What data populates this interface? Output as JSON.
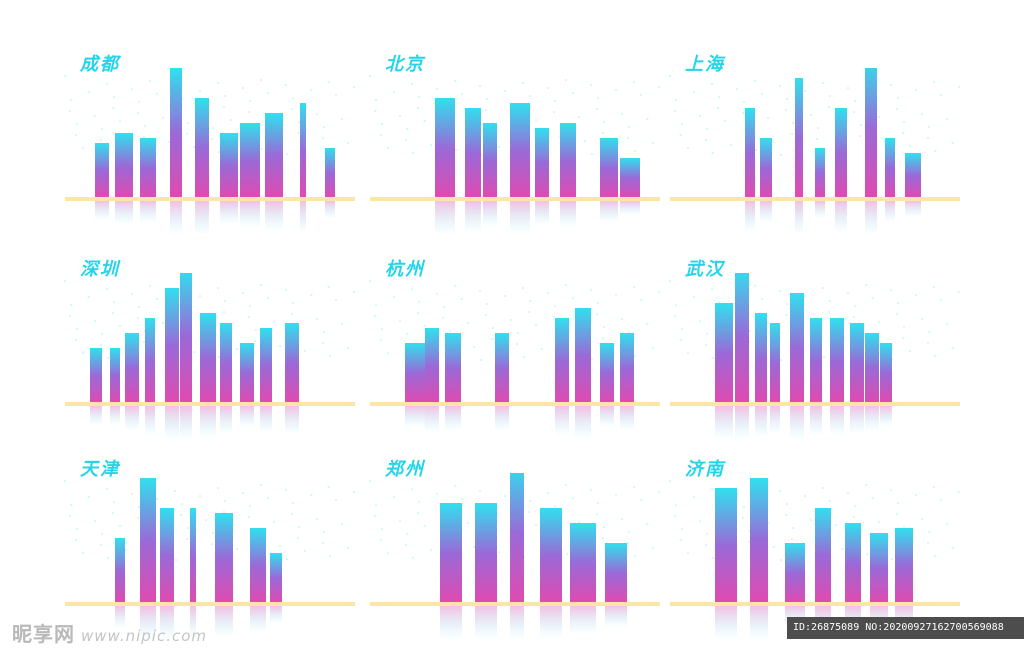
{
  "panels": [
    {
      "city": "成都"
    },
    {
      "city": "北京"
    },
    {
      "city": "上海"
    },
    {
      "city": "深圳"
    },
    {
      "city": "杭州"
    },
    {
      "city": "武汉"
    },
    {
      "city": "天津"
    },
    {
      "city": "郑州"
    },
    {
      "city": "济南"
    }
  ],
  "watermark": {
    "brand": "昵享网",
    "url": "www.nipic.com",
    "id_text": "ID:26875089 NO:20200927162700569088"
  },
  "colors": {
    "title": "#26d4ea",
    "tower_top": "#30e0ee",
    "tower_mid": "#9a6ad8",
    "tower_bottom": "#e04ab0",
    "ground": "#fbe6a8"
  }
}
